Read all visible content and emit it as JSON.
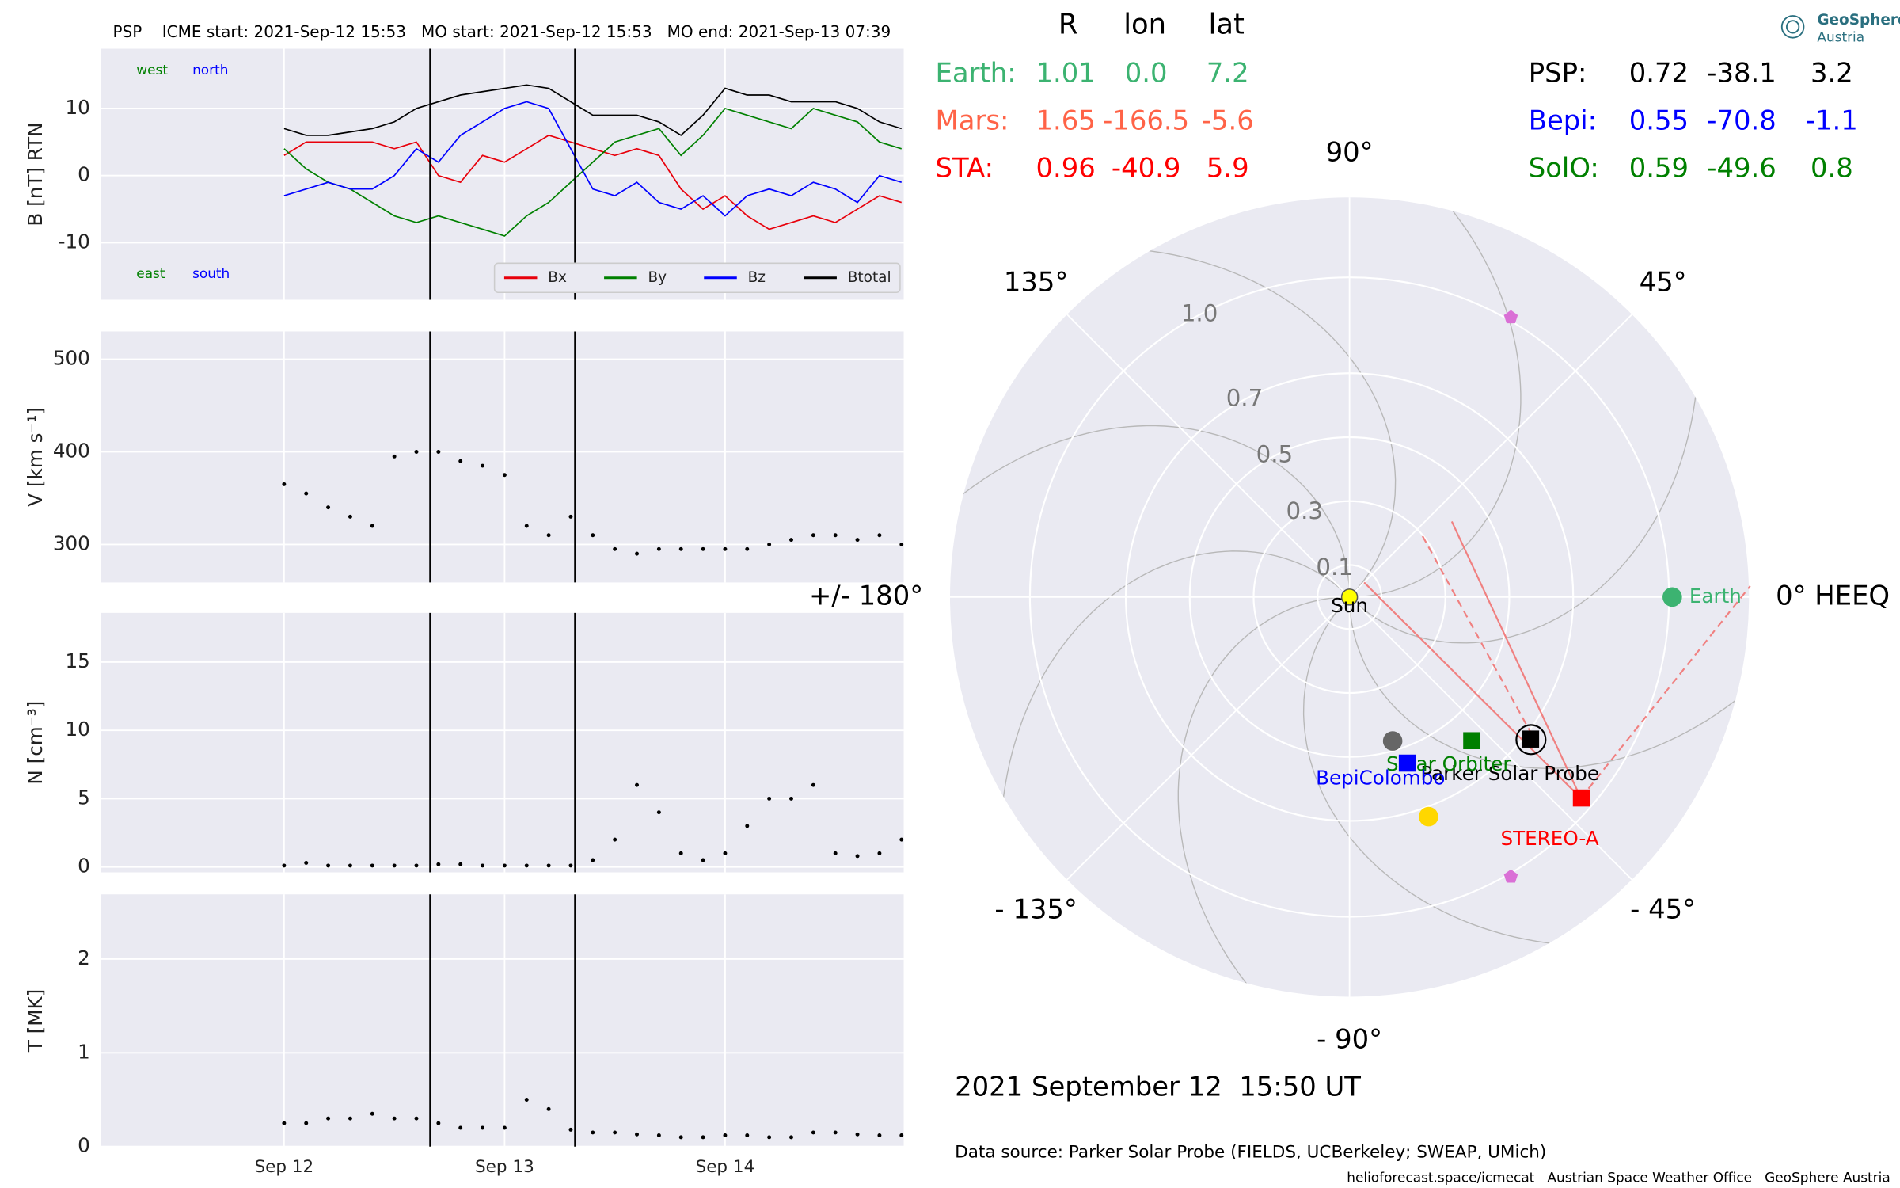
{
  "chart_data": [
    {
      "type": "line",
      "title": "PSP    ICME start: 2021-Sep-12 15:53   MO start: 2021-Sep-12 15:53   MO end: 2021-Sep-13 07:39",
      "ylabel": "B [nT] RTN",
      "x": [
        12.0,
        12.1,
        12.2,
        12.3,
        12.4,
        12.5,
        12.6,
        12.7,
        12.8,
        12.9,
        13.0,
        13.1,
        13.2,
        13.3,
        13.4,
        13.5,
        13.6,
        13.7,
        13.8,
        13.9,
        14.0,
        14.1,
        14.2,
        14.3,
        14.4,
        14.5,
        14.6,
        14.7,
        14.8
      ],
      "series": [
        {
          "name": "Bx",
          "color": "#e8000b",
          "values": [
            3,
            5,
            5,
            5,
            5,
            4,
            5,
            0,
            -1,
            3,
            2,
            4,
            6,
            5,
            4,
            3,
            4,
            3,
            -2,
            -5,
            -3,
            -6,
            -8,
            -7,
            -6,
            -7,
            -5,
            -3,
            -4
          ]
        },
        {
          "name": "By",
          "color": "#008000",
          "values": [
            4,
            1,
            -1,
            -2,
            -4,
            -6,
            -7,
            -6,
            -7,
            -8,
            -9,
            -6,
            -4,
            -1,
            2,
            5,
            6,
            7,
            3,
            6,
            10,
            9,
            8,
            7,
            10,
            9,
            8,
            5,
            4
          ]
        },
        {
          "name": "Bz",
          "color": "#0000ff",
          "values": [
            -3,
            -2,
            -1,
            -2,
            -2,
            0,
            4,
            2,
            6,
            8,
            10,
            11,
            10,
            4,
            -2,
            -3,
            -1,
            -4,
            -5,
            -3,
            -6,
            -3,
            -2,
            -3,
            -1,
            -2,
            -4,
            0,
            -1
          ]
        },
        {
          "name": "Btotal",
          "color": "#000000",
          "values": [
            7,
            6,
            6,
            6.5,
            7,
            8,
            10,
            11,
            12,
            12.5,
            13,
            13.5,
            13,
            11,
            9,
            9,
            9,
            8,
            6,
            9,
            13,
            12,
            12,
            11,
            11,
            11,
            10,
            8,
            7
          ]
        }
      ],
      "xlim": [
        11.17,
        14.81
      ],
      "xticks": [
        12,
        13,
        14
      ],
      "ylim": [
        -18.5,
        18.9
      ],
      "yticks": [
        -10,
        0,
        10
      ],
      "vlines": [
        12.662,
        13.319
      ],
      "grid": true,
      "legend": "lower right",
      "annotations": [
        {
          "text": "west",
          "color": "#008000"
        },
        {
          "text": "north",
          "color": "#0000ff"
        },
        {
          "text": "east",
          "color": "#008000"
        },
        {
          "text": "south",
          "color": "#0000ff"
        }
      ]
    },
    {
      "type": "scatter",
      "ylabel": "V [km s⁻¹]",
      "x": [
        12.0,
        12.1,
        12.2,
        12.3,
        12.4,
        12.5,
        12.6,
        12.7,
        12.8,
        12.9,
        13.0,
        13.1,
        13.2,
        13.3,
        13.4,
        13.5,
        13.6,
        13.7,
        13.8,
        13.9,
        14.0,
        14.1,
        14.2,
        14.3,
        14.4,
        14.5,
        14.6,
        14.7,
        14.8
      ],
      "values": [
        365,
        355,
        340,
        330,
        320,
        395,
        400,
        400,
        390,
        385,
        375,
        320,
        310,
        330,
        310,
        295,
        290,
        295,
        295,
        295,
        295,
        295,
        300,
        305,
        310,
        310,
        305,
        310,
        300
      ],
      "color": "#000000",
      "xlim": [
        11.17,
        14.81
      ],
      "xticks": [
        12,
        13,
        14
      ],
      "ylim": [
        259,
        530
      ],
      "yticks": [
        300,
        400,
        500
      ],
      "vlines": [
        12.662,
        13.319
      ],
      "grid": true
    },
    {
      "type": "scatter",
      "ylabel": "N [cm⁻³]",
      "x": [
        12.0,
        12.1,
        12.2,
        12.3,
        12.4,
        12.5,
        12.6,
        12.7,
        12.8,
        12.9,
        13.0,
        13.1,
        13.2,
        13.3,
        13.4,
        13.5,
        13.6,
        13.7,
        13.8,
        13.9,
        14.0,
        14.1,
        14.2,
        14.3,
        14.4,
        14.5,
        14.6,
        14.7,
        14.8
      ],
      "values": [
        0.1,
        0.3,
        0.1,
        0.1,
        0.1,
        0.1,
        0.1,
        0.2,
        0.2,
        0.1,
        0.1,
        0.1,
        0.1,
        0.1,
        0.5,
        2,
        6,
        4,
        1,
        0.5,
        1,
        3,
        5,
        5,
        6,
        1,
        0.8,
        1,
        2
      ],
      "color": "#000000",
      "xlim": [
        11.17,
        14.81
      ],
      "xticks": [
        12,
        13,
        14
      ],
      "ylim": [
        -0.4,
        18.6
      ],
      "yticks": [
        0,
        5,
        10,
        15
      ],
      "vlines": [
        12.662,
        13.319
      ],
      "grid": true
    },
    {
      "type": "scatter",
      "ylabel": "T [MK]",
      "x": [
        12.0,
        12.1,
        12.2,
        12.3,
        12.4,
        12.5,
        12.6,
        12.7,
        12.8,
        12.9,
        13.0,
        13.1,
        13.2,
        13.3,
        13.4,
        13.5,
        13.6,
        13.7,
        13.8,
        13.9,
        14.0,
        14.1,
        14.2,
        14.3,
        14.4,
        14.5,
        14.6,
        14.7,
        14.8
      ],
      "values": [
        0.25,
        0.25,
        0.3,
        0.3,
        0.35,
        0.3,
        0.3,
        0.25,
        0.2,
        0.2,
        0.2,
        0.5,
        0.4,
        0.18,
        0.15,
        0.15,
        0.13,
        0.12,
        0.1,
        0.1,
        0.12,
        0.12,
        0.1,
        0.1,
        0.15,
        0.15,
        0.13,
        0.12,
        0.12
      ],
      "color": "#000000",
      "xlim": [
        11.17,
        14.81
      ],
      "xticks": [
        {
          "value": 12,
          "label": "Sep 12"
        },
        {
          "value": 13,
          "label": "Sep 13"
        },
        {
          "value": 14,
          "label": "Sep 14"
        }
      ],
      "ylim": [
        0,
        2.69
      ],
      "yticks": [
        0,
        1,
        2
      ],
      "vlines": [
        12.662,
        13.319
      ],
      "grid": true
    },
    {
      "type": "polar",
      "rlim": [
        0,
        1.25
      ],
      "rticks": [
        0.1,
        0.3,
        0.5,
        0.7,
        {
          "value": 1,
          "label": "1.0"
        }
      ],
      "thetaticks": [
        {
          "value": 0,
          "label": "0° HEEQ"
        },
        {
          "value": 45,
          "label": "45°"
        },
        {
          "value": 90,
          "label": "90°"
        },
        {
          "value": 135,
          "label": "135°"
        },
        {
          "value": 180,
          "label": "+/- 180°"
        },
        {
          "value": -135,
          "label": "- 135°"
        },
        {
          "value": -90,
          "label": "- 90°"
        },
        {
          "value": -45,
          "label": "- 45°"
        }
      ],
      "series": [
        {
          "name": "Earth",
          "color": "#3cb371",
          "marker": "circle",
          "r": 1.01,
          "lon": 0
        },
        {
          "name": "STEREO-A",
          "color": "#ff0000",
          "marker": "square",
          "r": 0.96,
          "lon": -40.9
        },
        {
          "name": "Parker Solar Probe",
          "color": "#000000",
          "marker": "square",
          "r": 0.72,
          "lon": -38.1
        },
        {
          "name": "Solar Orbiter",
          "color": "#008000",
          "marker": "square",
          "r": 0.59,
          "lon": -49.6
        },
        {
          "name": "BepiColombo",
          "color": "#0000ff",
          "marker": "square",
          "r": 0.55,
          "lon": -70.8
        },
        {
          "color": "#666666",
          "marker": "circle",
          "r": 0.47,
          "lon": -73.3
        },
        {
          "color": "#ffd700",
          "marker": "circle",
          "r": 0.73,
          "lon": -70.2
        },
        {
          "color": "#da70d6",
          "marker": "pentagon",
          "r": 1.01,
          "lon": 60
        },
        {
          "color": "#da70d6",
          "marker": "pentagon",
          "r": 1.01,
          "lon": -60
        },
        {
          "name": "Sun",
          "color": "#ffff00",
          "marker": "circle",
          "r": 0,
          "lon": 0
        }
      ]
    }
  ],
  "positions": {
    "columns": [
      "R",
      "lon",
      "lat"
    ],
    "rows": [
      {
        "name": "Earth:",
        "color": "#3cb371",
        "cells": [
          "1.01",
          "0.0",
          "7.2"
        ]
      },
      {
        "name": "Mars:",
        "color": "#ff6347",
        "cells": [
          "1.65",
          "-166.5",
          "-5.6"
        ]
      },
      {
        "name": "STA:",
        "color": "#ff0000",
        "cells": [
          "0.96",
          "-40.9",
          "5.9"
        ]
      },
      {
        "name": "PSP:",
        "color": "#000000",
        "cells": [
          "0.72",
          "-38.1",
          "3.2"
        ]
      },
      {
        "name": "Bepi:",
        "color": "#0000ff",
        "cells": [
          "0.55",
          "-70.8",
          "-1.1"
        ]
      },
      {
        "name": "SolO:",
        "color": "#008000",
        "cells": [
          "0.59",
          "-49.6",
          "0.8"
        ]
      }
    ]
  },
  "footer": {
    "date": "2021 September 12  15:50 UT",
    "source": "Data source: Parker Solar Probe (FIELDS, UCBerkeley; SWEAP, UMich)",
    "credits": "helioforecast.space/icmecat   Austrian Space Weather Office   GeoSphere Austria"
  },
  "logo": {
    "name": "GeoSphere",
    "sub": "Austria"
  }
}
